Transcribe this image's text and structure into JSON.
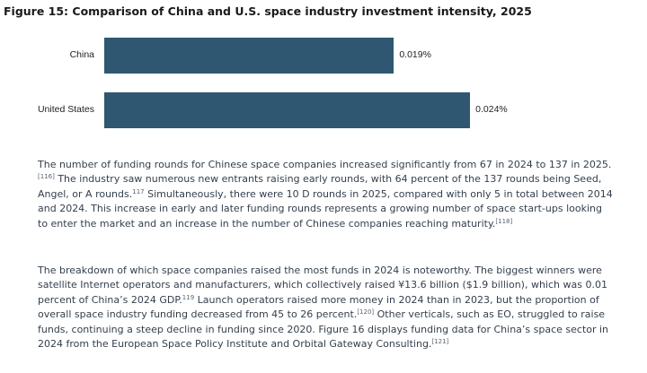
{
  "figure": {
    "title": "Figure 15: Comparison of China and U.S. space industry investment intensity, 2025"
  },
  "chart_data": {
    "type": "bar",
    "orientation": "horizontal",
    "title": "Figure 15: Comparison of China and U.S. space industry investment intensity, 2025",
    "categories": [
      "China",
      "United States"
    ],
    "values": [
      0.019,
      0.024
    ],
    "value_labels": [
      "0.019%",
      "0.024%"
    ],
    "unit": "%",
    "xlim": [
      0,
      0.028
    ],
    "grid": false,
    "legend": "none",
    "colors": {
      "bar": "#2f5771"
    }
  },
  "paragraphs": [
    {
      "segments": [
        {
          "text": "The number of funding rounds for Chinese space companies increased significantly from 67 in 2024 to 137 in 2025."
        },
        {
          "sup": "[116]"
        },
        {
          "text": " The industry saw numerous new entrants raising early rounds, with 64 percent of the 137 rounds being Seed, Angel, or A rounds."
        },
        {
          "sup": "117"
        },
        {
          "text": " Simultaneously, there were 10 D rounds in 2025, compared with only 5 in total between 2014 and 2024. This increase in early and later funding rounds represents a growing number of space start-ups looking to enter the market and an increase in the number of Chinese companies reaching maturity."
        },
        {
          "sup": "[118]"
        }
      ]
    },
    {
      "segments": [
        {
          "text": "The breakdown of which space companies raised the most funds in 2024 is noteworthy. The biggest winners were satellite Internet operators and manufacturers, which collectively raised ¥13.6 billion ($1.9 billion), which was 0.01 percent of China’s 2024 GDP."
        },
        {
          "sup": "119"
        },
        {
          "text": " Launch operators raised more money in 2024 than in 2023, but the proportion of overall space industry funding decreased from 45 to 26 percent."
        },
        {
          "sup": "[120]"
        },
        {
          "text": " Other verticals, such as EO, struggled to raise funds, continuing a steep decline in funding since 2020. Figure 16 displays funding data for China’s space sector in 2024 from the European Space Policy Institute and Orbital Gateway Consulting."
        },
        {
          "sup": "[121]"
        }
      ]
    }
  ]
}
